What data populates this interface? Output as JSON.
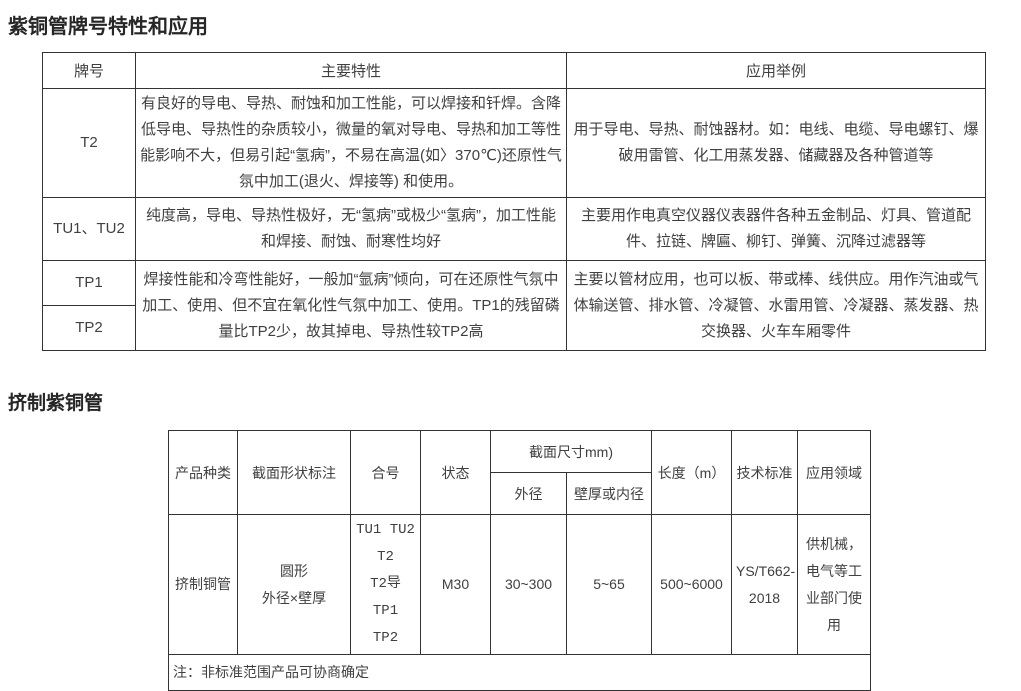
{
  "section1": {
    "title": "紫铜管牌号特性和应用"
  },
  "section2": {
    "title": "挤制紫铜管"
  },
  "grade_table": {
    "headers": {
      "grade": "牌号",
      "features": "主要特性",
      "applications": "应用举例"
    },
    "rows": {
      "t2": {
        "grade": "T2",
        "features": "有良好的导电、导热、耐蚀和加工性能，可以焊接和钎焊。含降低导电、导热性的杂质较小，微量的氧对导电、导热和加工等性能影响不大，但易引起“氢病”，不易在高温(如〉370℃)还原性气氛中加工(退火、焊接等) 和使用。",
        "applications": "用于导电、导热、耐蚀器材。如：电线、电缆、导电螺钉、爆破用雷管、化工用蒸发器、储藏器及各种管道等"
      },
      "tu": {
        "grade": "TU1、TU2",
        "features": "纯度高，导电、导热性极好，无“氢病”或极少“氢病”，加工性能和焊接、耐蚀、耐寒性均好",
        "applications": "主要用作电真空仪器仪表器件各种五金制品、灯具、管道配件、拉链、牌匾、柳钉、弹簧、沉降过滤器等"
      },
      "tp": {
        "grade1": "TP1",
        "grade2": "TP2",
        "features": "焊接性能和冷弯性能好，一般加“氩病”倾向，可在还原性气氛中加工、使用、但不宜在氧化性气氛中加工、使用。TP1的残留磷量比TP2少，故其掉电、导热性较TP2高",
        "applications": "主要以管材应用，也可以板、带或棒、线供应。用作汽油或气体输送管、排水管、冷凝管、水雷用管、冷凝器、蒸发器、热交换器、火车车厢零件"
      }
    }
  },
  "extruded_table": {
    "headers": {
      "product_type": "产品种类",
      "section_shape": "截面形状标注",
      "alloy": "合号",
      "state": "状态",
      "section_size": "截面尺寸mm)",
      "outer_diameter": "外径",
      "wall_or_inner": "壁厚或内径",
      "length": "长度（m）",
      "standard": "技术标准",
      "application_field": "应用领域"
    },
    "row": {
      "product_type": "挤制铜管",
      "section_shape": "圆形\n外径×壁厚",
      "alloy": "TU1 TU2 T2\nT2导 TP1\nTP2",
      "state": "M30",
      "outer_diameter": "30~300",
      "wall_or_inner": "5~65",
      "length": "500~6000",
      "standard": "YS/T662-2018",
      "application_field": "供机械，电气等工业部门使用"
    },
    "note": "注：非标准范围产品可协商确定"
  }
}
